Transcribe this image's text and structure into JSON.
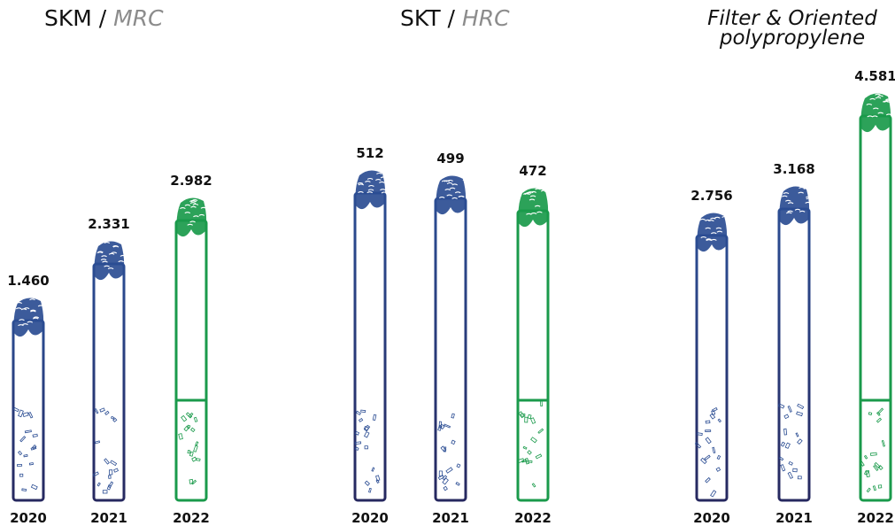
{
  "colors": {
    "blue": "#2b4d93",
    "navy": "#26285f",
    "green": "#1a9a4b",
    "title_gray": "#8c8c8c"
  },
  "chart_data": [
    {
      "type": "bar",
      "title_main": "SKM / ",
      "title_sub": "MRC",
      "categories": [
        "2020",
        "2021",
        "2022"
      ],
      "values": [
        1460,
        2331,
        2982
      ],
      "value_labels": [
        "1.460",
        "2.331",
        "2.982"
      ],
      "highlight_index": 2,
      "ylim": [
        0,
        4581
      ]
    },
    {
      "type": "bar",
      "title_main": "SKT / ",
      "title_sub": "HRC",
      "categories": [
        "2020",
        "2021",
        "2022"
      ],
      "values": [
        512,
        499,
        472
      ],
      "value_labels": [
        "512",
        "499",
        "472"
      ],
      "highlight_index": 2,
      "ylim": [
        0,
        512
      ]
    },
    {
      "type": "bar",
      "title_line1": "Filter & Oriented",
      "title_line2": "polypropylene",
      "categories": [
        "2020",
        "2021",
        "2022"
      ],
      "values": [
        2756,
        3168,
        4581
      ],
      "value_labels": [
        "2.756",
        "3.168",
        "4.581"
      ],
      "highlight_index": 2,
      "ylim": [
        0,
        4581
      ]
    }
  ]
}
